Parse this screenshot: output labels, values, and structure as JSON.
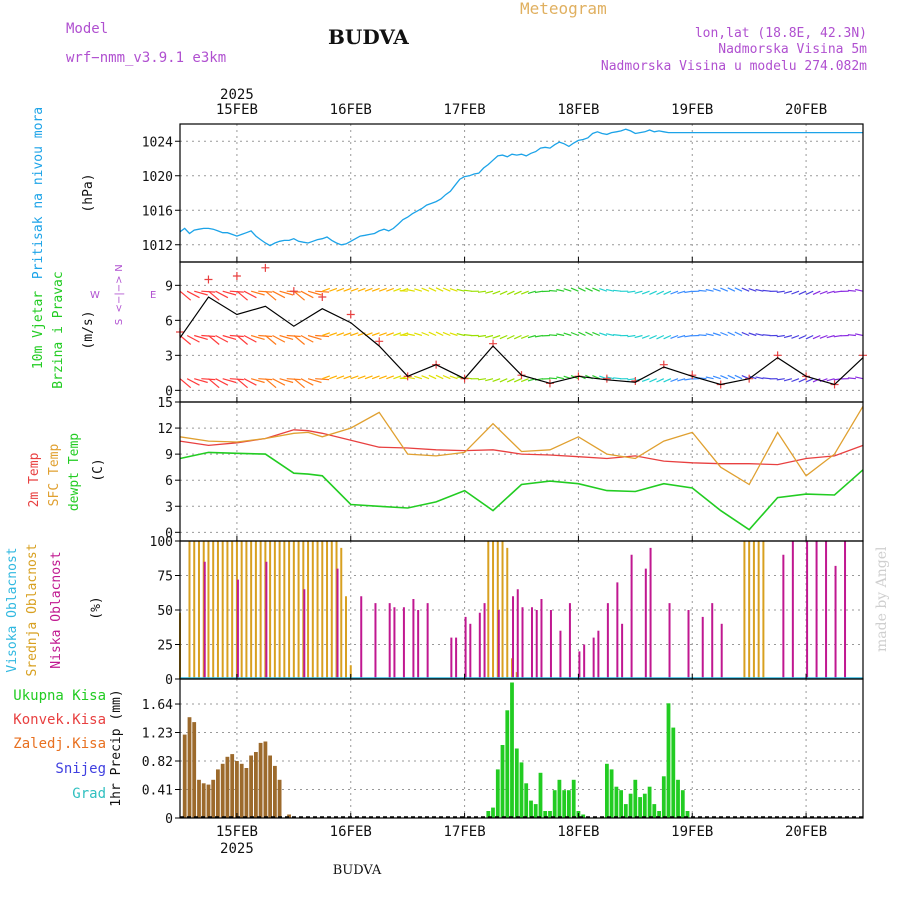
{
  "header": {
    "model_label": "Model",
    "model_name": "wrf−nmm_v3.9.1  e3km",
    "station": "BUDVA",
    "product": "Meteogram",
    "lonlat": "lon,lat (18.8E, 42.3N)",
    "elevation": "Nadmorska Visina 5m",
    "model_elevation": "Nadmorska Visina u modelu 274.082m",
    "footer_station": "BUDVA",
    "watermark": "made by Angel"
  },
  "colors": {
    "pressure": "#1ca3e8",
    "temp2m": "#e84040",
    "sfc_temp": "#e0a030",
    "dewpoint": "#22cc22",
    "cloud_high": "#30b8e0",
    "cloud_mid": "#d8a020",
    "cloud_low": "#c01890",
    "precip_total": "#22cc22",
    "precip_conv": "#e84040",
    "precip_frozen": "#e87020",
    "precip_snow": "#4040e0",
    "precip_hail": "#30c0c0",
    "title_purple": "#b050d0",
    "meteogram_label": "#e0b060"
  },
  "time_axis": {
    "year_label": "2025",
    "day_labels": [
      "15FEB",
      "16FEB",
      "17FEB",
      "18FEB",
      "19FEB",
      "20FEB"
    ],
    "start_hour": 0,
    "end_hour": 144
  },
  "chart_data": [
    {
      "type": "line",
      "panel": "pressure",
      "labels": [
        "Pritisak na nivou mora",
        "(hPa)"
      ],
      "ylabel": "(hPa)",
      "ylim": [
        1010,
        1026
      ],
      "yticks": [
        1012,
        1016,
        1020,
        1024
      ],
      "series": [
        {
          "name": "MSLP",
          "x": [
            0,
            1,
            2,
            3,
            4,
            5,
            6,
            7,
            8,
            9,
            10,
            11,
            12,
            13,
            14,
            15,
            16,
            17,
            18,
            19,
            20,
            21,
            22,
            23,
            24,
            25,
            26,
            27,
            28,
            29,
            30,
            31,
            32,
            33,
            34,
            35,
            36,
            37,
            38,
            39,
            40,
            41,
            42,
            43,
            44,
            45,
            46,
            47,
            48,
            49,
            50,
            51,
            52,
            53,
            54,
            55,
            56,
            57,
            58,
            59,
            60,
            61,
            62,
            63,
            64,
            65,
            66,
            67,
            68,
            69,
            70,
            71,
            72,
            73,
            74,
            75,
            76,
            77,
            78,
            79,
            80,
            81,
            82,
            83,
            84,
            85,
            86,
            87,
            88,
            89,
            90,
            91,
            92,
            93,
            94,
            95,
            96,
            97,
            98,
            99,
            100,
            101,
            102,
            103,
            104,
            105,
            106,
            107,
            108,
            109,
            110,
            111,
            112,
            113,
            114,
            115,
            116,
            117,
            118,
            119,
            120,
            121,
            122,
            123,
            124,
            125,
            126,
            127,
            128,
            129,
            130,
            131,
            132,
            133,
            134,
            135,
            136,
            137,
            138,
            139,
            140,
            141,
            142,
            143,
            144
          ],
          "values": [
            1013.5,
            1013.9,
            1013.3,
            1013.7,
            1013.8,
            1013.9,
            1013.9,
            1013.8,
            1013.6,
            1013.4,
            1013.4,
            1013.2,
            1013.0,
            1013.2,
            1013.4,
            1013.6,
            1013.0,
            1012.6,
            1012.2,
            1011.9,
            1012.2,
            1012.4,
            1012.5,
            1012.5,
            1012.7,
            1012.4,
            1012.3,
            1012.2,
            1012.4,
            1012.6,
            1012.7,
            1012.9,
            1012.5,
            1012.2,
            1012.0,
            1012.1,
            1012.4,
            1012.7,
            1013.0,
            1013.1,
            1013.2,
            1013.3,
            1013.6,
            1013.8,
            1013.6,
            1013.9,
            1014.4,
            1014.9,
            1015.2,
            1015.6,
            1015.9,
            1016.2,
            1016.6,
            1016.8,
            1017.0,
            1017.3,
            1017.8,
            1018.2,
            1018.9,
            1019.6,
            1019.9,
            1020.0,
            1020.2,
            1020.3,
            1020.9,
            1021.3,
            1021.8,
            1022.3,
            1022.4,
            1022.2,
            1022.5,
            1022.4,
            1022.5,
            1022.3,
            1022.6,
            1022.8,
            1023.2,
            1023.3,
            1023.2,
            1023.6,
            1023.9,
            1023.7,
            1023.4,
            1023.8,
            1024.1,
            1024.2,
            1024.4,
            1024.9,
            1025.1,
            1024.9,
            1024.8,
            1025.0,
            1025.1,
            1025.2,
            1025.4,
            1025.2,
            1024.9,
            1025.0,
            1025.1,
            1025.3,
            1025.1,
            1025.2,
            1025.1,
            1025.0,
            1025.0,
            1025.0,
            1025.0,
            1025.0,
            1025.0,
            1025.0,
            1025.0,
            1025.0,
            1025.0,
            1025.0,
            1025.0,
            1025.0,
            1025.0,
            1025.0,
            1025.0,
            1025.0,
            1025.0,
            1025.0,
            1025.0,
            1025.0,
            1025.0,
            1025.0,
            1025.0,
            1025.0,
            1025.0,
            1025.0,
            1025.0,
            1025.0,
            1025.0,
            1025.0,
            1025.0,
            1025.0,
            1025.0,
            1025.0,
            1025.0,
            1025.0,
            1025.0,
            1025.0,
            1025.0,
            1025.0,
            1025.0
          ]
        }
      ]
    },
    {
      "type": "line",
      "panel": "wind",
      "labels": [
        "10m Vjetar",
        "Brzina i Pravac",
        "(m/s)"
      ],
      "compass": [
        "N",
        "<−|−>",
        "W",
        "E",
        "S"
      ],
      "ylabel": "(m/s)",
      "ylim": [
        -1,
        11
      ],
      "yticks": [
        0,
        3,
        6,
        9
      ],
      "levels": [
        8.5,
        4.7,
        1.0
      ],
      "series": [
        {
          "name": "wind speed",
          "x": [
            0,
            6,
            12,
            18,
            24,
            30,
            36,
            42,
            48,
            54,
            60,
            66,
            72,
            78,
            84,
            90,
            96,
            102,
            108,
            114,
            120,
            126,
            132,
            138,
            144
          ],
          "values": [
            4.5,
            8.0,
            6.5,
            7.2,
            5.5,
            7.0,
            5.8,
            3.8,
            1.2,
            2.2,
            1.0,
            3.8,
            1.3,
            0.6,
            1.2,
            0.9,
            0.7,
            2.0,
            1.2,
            0.5,
            1.0,
            2.8,
            1.2,
            0.5,
            2.8
          ]
        },
        {
          "name": "gust",
          "x": [
            0,
            6,
            12,
            18,
            24,
            30,
            36,
            42,
            48,
            54,
            60,
            66,
            72,
            78,
            84,
            90,
            96,
            102,
            108,
            114,
            120,
            126,
            132,
            138,
            144
          ],
          "values": [
            5.0,
            9.5,
            9.8,
            10.5,
            8.5,
            8.0,
            6.5,
            4.2,
            1.2,
            2.2,
            1.0,
            4.0,
            1.3,
            0.6,
            1.2,
            1.0,
            0.8,
            2.2,
            1.3,
            0.5,
            1.0,
            3.0,
            1.2,
            0.5,
            3.0
          ]
        }
      ]
    },
    {
      "type": "line",
      "panel": "temperature",
      "labels": [
        "2m Temp",
        "SFC Temp",
        "dewpt Temp",
        "(C)"
      ],
      "ylabel": "(C)",
      "ylim": [
        -1,
        15
      ],
      "yticks": [
        0,
        3,
        6,
        9,
        12,
        15
      ],
      "series": [
        {
          "name": "2m Temp",
          "x": [
            0,
            6,
            12,
            18,
            24,
            27,
            30,
            36,
            42,
            48,
            54,
            60,
            66,
            72,
            78,
            84,
            90,
            96,
            102,
            108,
            114,
            120,
            126,
            132,
            138,
            144
          ],
          "values": [
            10.5,
            10.0,
            10.3,
            10.8,
            11.8,
            11.7,
            11.4,
            10.6,
            9.8,
            9.7,
            9.5,
            9.4,
            9.5,
            9.0,
            8.9,
            8.7,
            8.5,
            8.8,
            8.2,
            8.0,
            7.9,
            7.9,
            7.8,
            8.5,
            8.8,
            10.0
          ]
        },
        {
          "name": "SFC Temp",
          "x": [
            0,
            6,
            12,
            18,
            24,
            27,
            30,
            36,
            42,
            48,
            54,
            60,
            66,
            72,
            78,
            84,
            90,
            96,
            102,
            108,
            114,
            120,
            126,
            132,
            138,
            144
          ],
          "values": [
            11.0,
            10.5,
            10.4,
            10.8,
            11.4,
            11.5,
            11.0,
            12.0,
            13.8,
            9.0,
            8.8,
            9.2,
            12.5,
            9.3,
            9.5,
            11.0,
            9.0,
            8.5,
            10.5,
            11.5,
            7.5,
            5.5,
            11.5,
            6.5,
            9.0,
            14.5
          ]
        },
        {
          "name": "dewpt Temp",
          "x": [
            0,
            6,
            12,
            18,
            24,
            27,
            30,
            36,
            42,
            48,
            54,
            60,
            66,
            72,
            78,
            84,
            90,
            96,
            102,
            108,
            114,
            120,
            126,
            132,
            138,
            144
          ],
          "values": [
            8.5,
            9.2,
            9.1,
            9.0,
            6.8,
            6.7,
            6.5,
            3.2,
            3.0,
            2.8,
            3.5,
            4.8,
            2.5,
            5.5,
            5.9,
            5.6,
            4.8,
            4.7,
            5.6,
            5.1,
            2.5,
            0.3,
            4.0,
            4.4,
            4.3,
            7.2
          ]
        }
      ]
    },
    {
      "type": "bar",
      "panel": "cloud",
      "labels": [
        "Visoka Oblacnost",
        "Srednja Oblacnost",
        "Niska Oblacnost",
        "(%)"
      ],
      "ylabel": "(%)",
      "ylim": [
        0,
        100
      ],
      "yticks": [
        0,
        25,
        50,
        75,
        100
      ],
      "series": [
        {
          "name": "Srednja",
          "x": [
            0,
            2,
            3,
            4,
            5,
            6,
            7,
            8,
            9,
            10,
            11,
            12,
            13,
            14,
            15,
            16,
            17,
            18,
            19,
            20,
            21,
            22,
            23,
            24,
            25,
            26,
            27,
            28,
            29,
            30,
            31,
            32,
            33,
            34,
            35,
            36,
            65,
            66,
            67,
            68,
            69,
            70,
            71,
            72,
            119,
            120,
            121,
            122,
            123
          ],
          "values": [
            48,
            100,
            100,
            100,
            100,
            100,
            100,
            100,
            100,
            100,
            100,
            100,
            100,
            100,
            100,
            100,
            100,
            100,
            100,
            100,
            100,
            100,
            100,
            100,
            100,
            100,
            100,
            100,
            100,
            100,
            100,
            100,
            100,
            95,
            60,
            10,
            100,
            100,
            100,
            100,
            95,
            15,
            5,
            0,
            100,
            100,
            100,
            100,
            100
          ]
        },
        {
          "name": "Niska",
          "x": [
            5,
            12,
            18,
            26,
            33,
            38,
            41,
            44,
            45,
            47,
            49,
            50,
            52,
            57,
            58,
            60,
            61,
            63,
            64,
            67,
            70,
            71,
            72,
            74,
            75,
            76,
            78,
            80,
            82,
            84,
            85,
            87,
            88,
            90,
            92,
            93,
            95,
            98,
            99,
            103,
            107,
            110,
            112,
            114,
            127,
            129,
            132,
            134,
            136,
            138,
            140
          ],
          "values": [
            85,
            72,
            85,
            65,
            80,
            60,
            55,
            55,
            52,
            52,
            58,
            50,
            55,
            30,
            30,
            45,
            40,
            48,
            55,
            50,
            60,
            65,
            52,
            52,
            50,
            58,
            50,
            35,
            55,
            20,
            25,
            30,
            35,
            55,
            70,
            40,
            90,
            80,
            95,
            55,
            50,
            45,
            55,
            40,
            90,
            100,
            100,
            100,
            100,
            82,
            100
          ]
        }
      ]
    },
    {
      "type": "bar",
      "panel": "precip",
      "labels": [
        "Ukupna Kisa",
        "Konvek.Kisa",
        "Zaledj.Kisa",
        "Snijeg",
        "Grad",
        "1hr Precip (mm)"
      ],
      "ylabel": "1hr Precip (mm)",
      "ylim": [
        0,
        2.0
      ],
      "yticks": [
        0,
        0.41,
        0.82,
        1.23,
        1.64
      ],
      "yticklabels": [
        "0",
        "0.41",
        "0.82",
        "1.23",
        "1.64"
      ],
      "series": [
        {
          "name": "Zaledj.Kisa",
          "x": [
            1,
            2,
            3,
            4,
            5,
            6,
            7,
            8,
            9,
            10,
            11,
            12,
            13,
            14,
            15,
            16,
            17,
            18,
            19,
            20,
            21,
            22,
            23,
            24
          ],
          "values": [
            1.2,
            1.45,
            1.38,
            0.55,
            0.5,
            0.48,
            0.55,
            0.7,
            0.78,
            0.88,
            0.92,
            0.82,
            0.78,
            0.72,
            0.9,
            0.95,
            1.08,
            1.1,
            0.9,
            0.75,
            0.55,
            0.0,
            0.05,
            0.0
          ]
        },
        {
          "name": "Ukupna Kisa",
          "x": [
            65,
            66,
            67,
            68,
            69,
            70,
            71,
            72,
            73,
            74,
            75,
            76,
            77,
            78,
            79,
            80,
            81,
            82,
            83,
            84,
            85,
            86,
            87,
            88,
            89,
            90,
            91,
            92,
            93,
            94,
            95,
            96,
            97,
            98,
            99,
            100,
            101,
            102,
            103,
            104,
            105,
            106,
            107
          ],
          "values": [
            0.1,
            0.15,
            0.7,
            1.05,
            1.55,
            1.95,
            1.0,
            0.8,
            0.5,
            0.25,
            0.2,
            0.65,
            0.1,
            0.1,
            0.4,
            0.55,
            0.4,
            0.4,
            0.55,
            0.1,
            0.05,
            0.0,
            0.0,
            0.0,
            0.0,
            0.78,
            0.7,
            0.45,
            0.4,
            0.2,
            0.35,
            0.55,
            0.3,
            0.35,
            0.45,
            0.2,
            0.1,
            0.6,
            1.65,
            1.3,
            0.55,
            0.4,
            0.1
          ]
        }
      ]
    }
  ]
}
